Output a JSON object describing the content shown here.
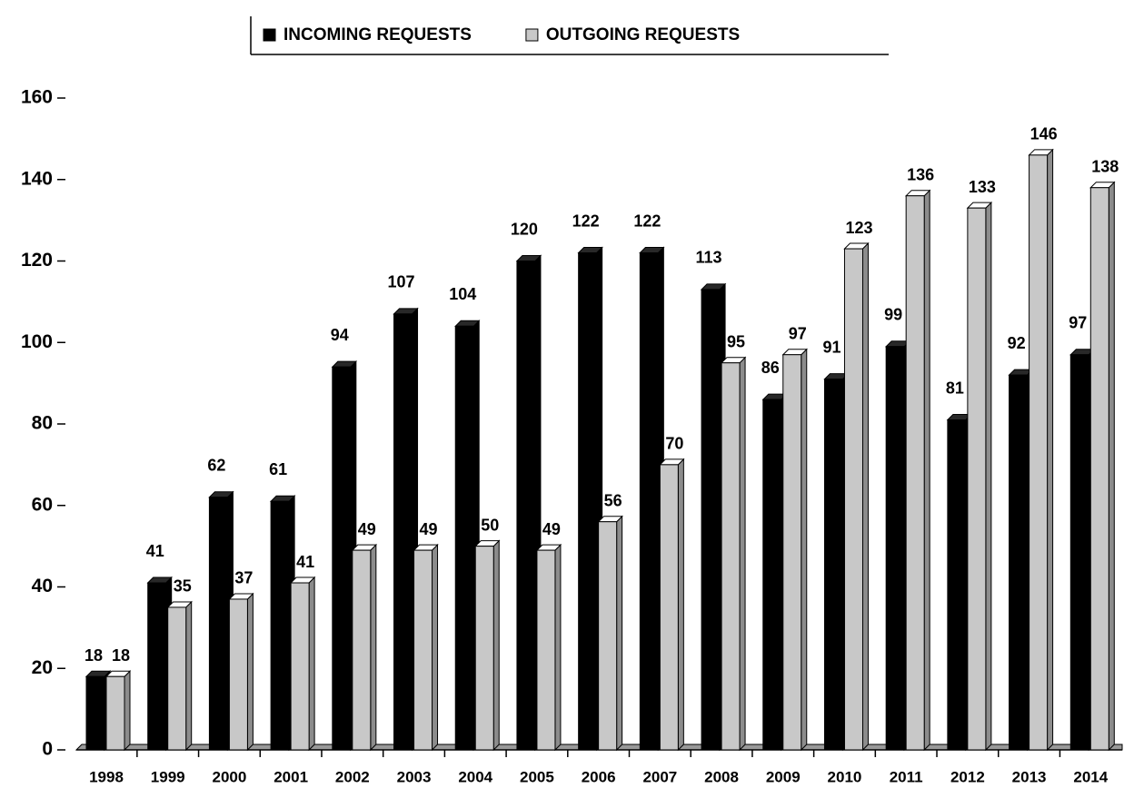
{
  "chart_data": {
    "type": "bar",
    "categories": [
      "1998",
      "1999",
      "2000",
      "2001",
      "2002",
      "2003",
      "2004",
      "2005",
      "2006",
      "2007",
      "2008",
      "2009",
      "2010",
      "2011",
      "2012",
      "2013",
      "2014"
    ],
    "series": [
      {
        "name": "INCOMING REQUESTS",
        "color": "#000000",
        "values": [
          18,
          41,
          62,
          61,
          94,
          107,
          104,
          120,
          122,
          122,
          113,
          86,
          91,
          99,
          81,
          92,
          97
        ]
      },
      {
        "name": "OUTGOING REQUESTS",
        "color": "#c8c8c8",
        "values": [
          18,
          35,
          37,
          41,
          49,
          49,
          50,
          49,
          56,
          70,
          95,
          97,
          123,
          136,
          133,
          146,
          138
        ]
      }
    ],
    "ylim": [
      0,
      160
    ],
    "yticks": [
      0,
      20,
      40,
      60,
      80,
      100,
      120,
      140,
      160
    ],
    "legend": "top"
  }
}
